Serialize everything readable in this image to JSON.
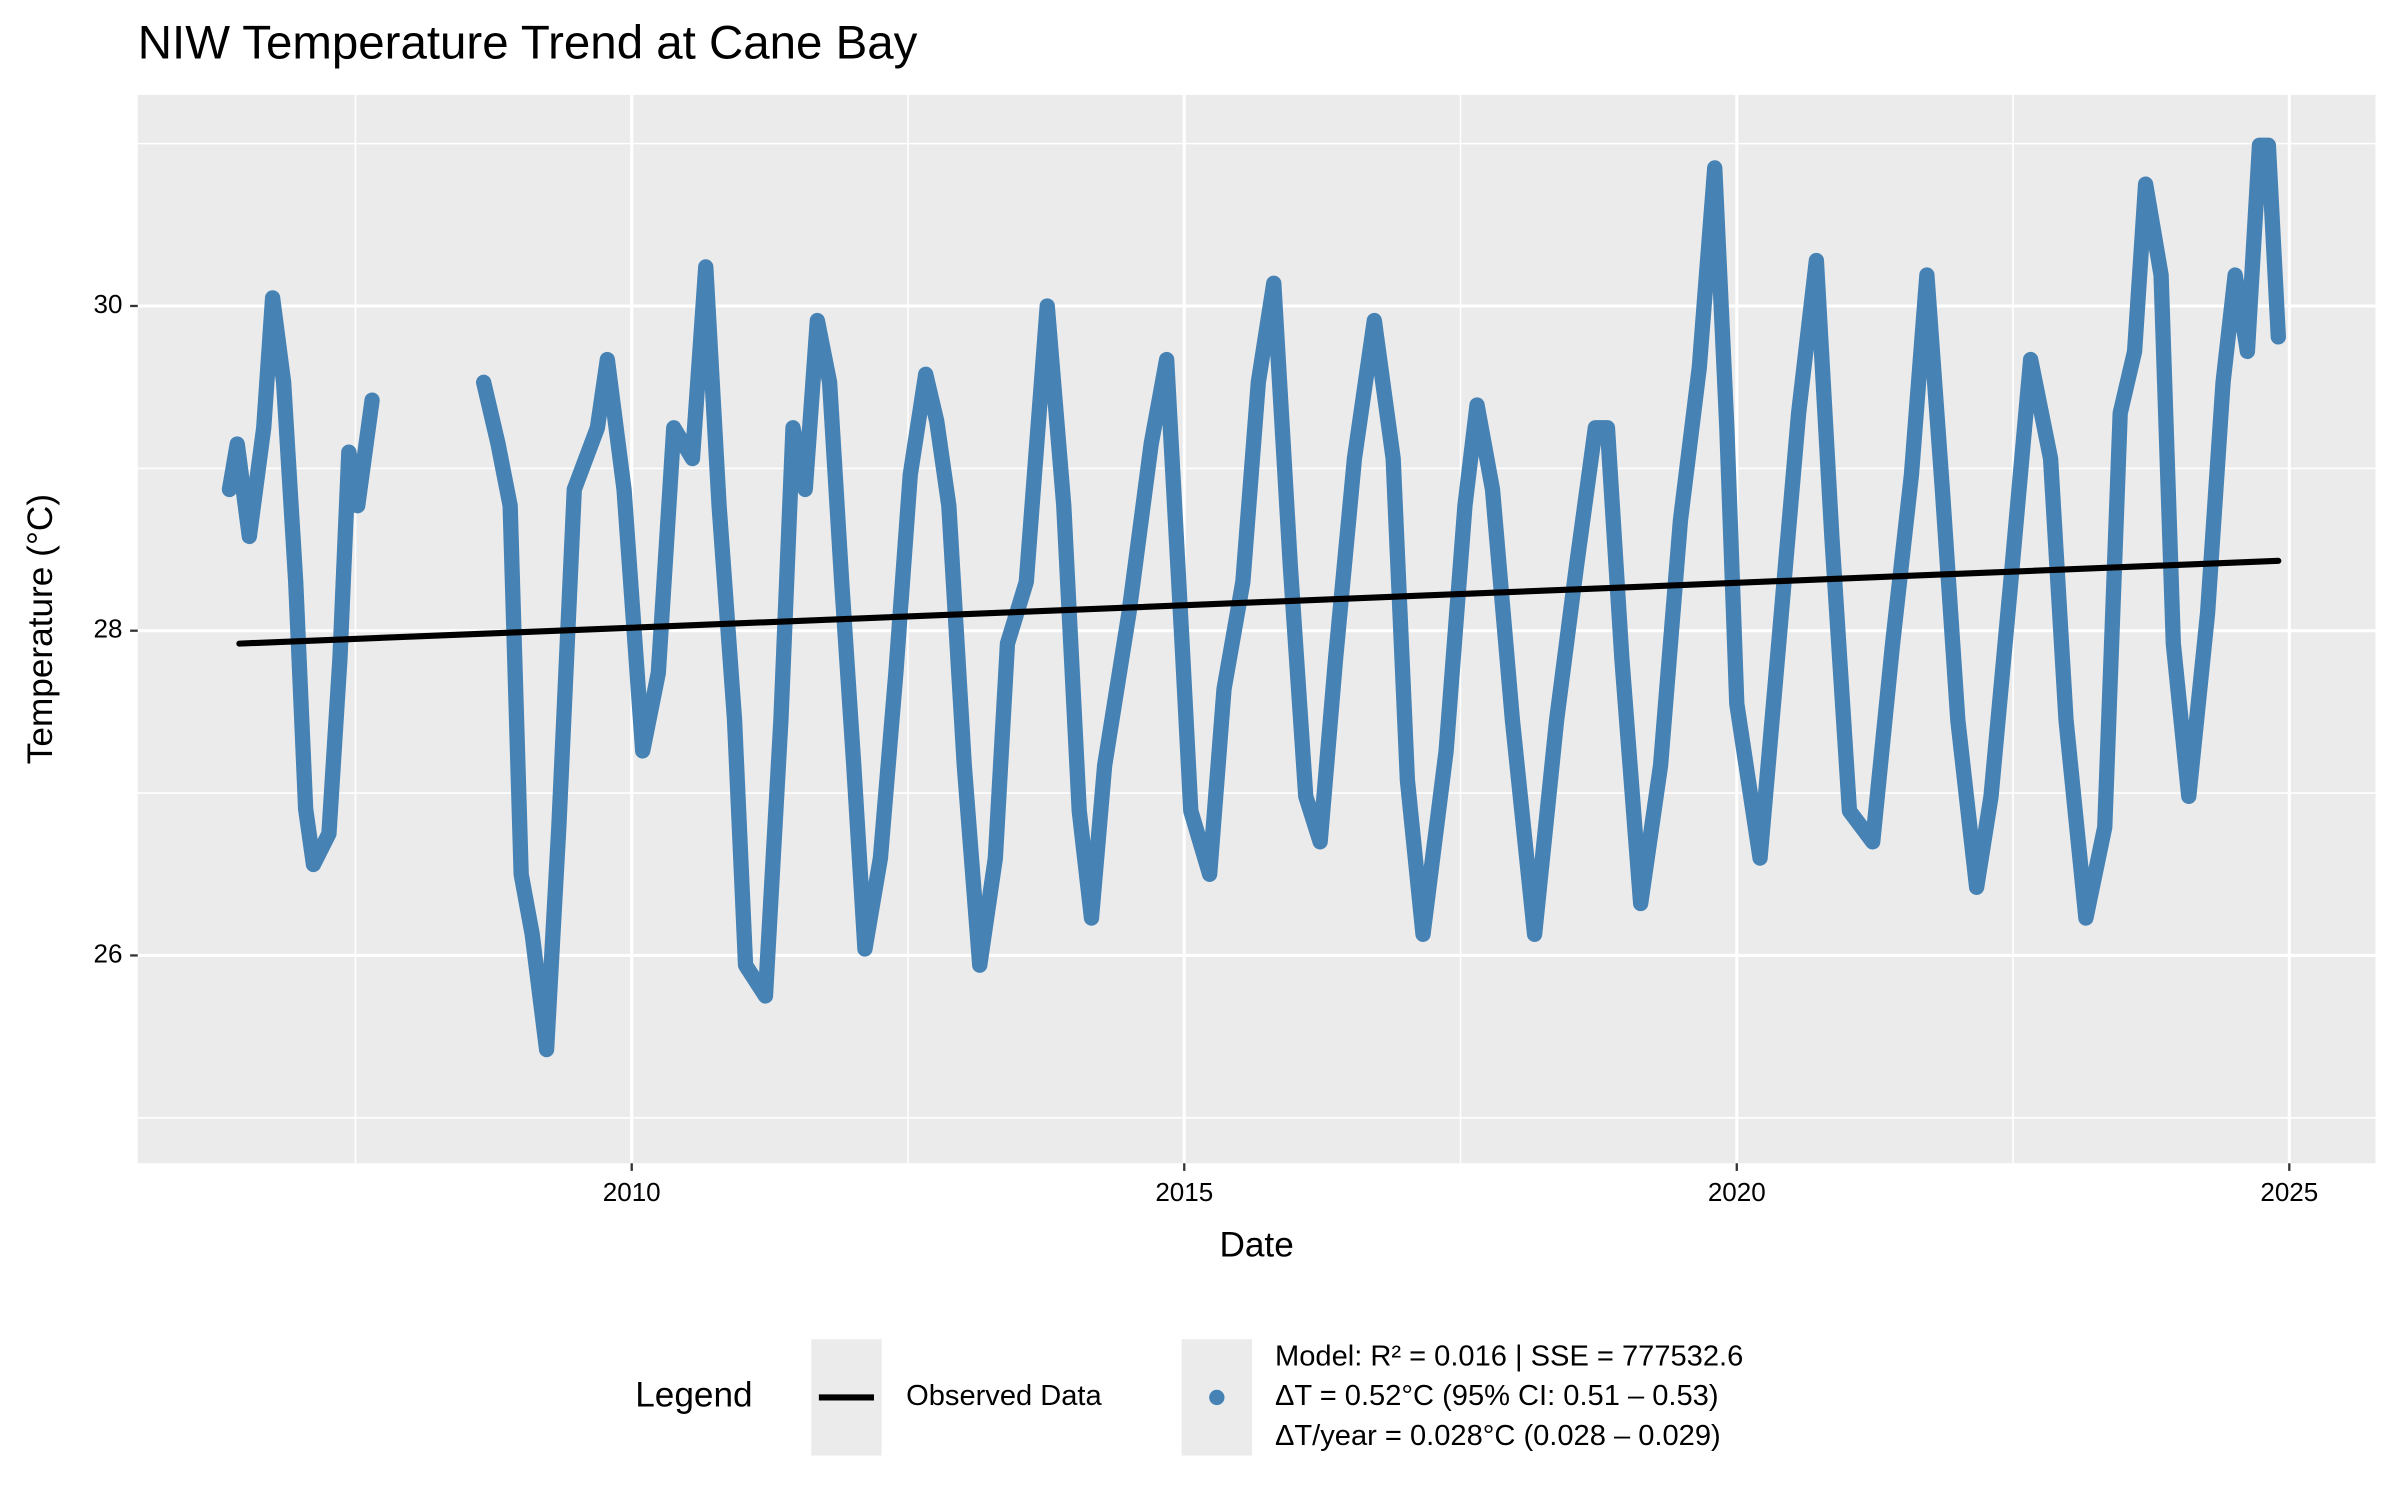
{
  "chart_data": {
    "type": "line",
    "title": "NIW Temperature Trend at Cane Bay",
    "x_label": "Date",
    "y_label": "Temperature (°C)",
    "xlim": [
      2005.53,
      2025.78
    ],
    "ylim": [
      24.72,
      31.3
    ],
    "xticks": [
      2010,
      2015,
      2020,
      2025
    ],
    "yticks": [
      26,
      28,
      30
    ],
    "xminor": [
      2007.5,
      2012.5,
      2017.5,
      2022.5
    ],
    "yminor": [
      25,
      27,
      29,
      31
    ],
    "grid": true,
    "legend_position": "bottom",
    "legend_title": "Legend",
    "series": [
      {
        "label_lines": [
          "Model: R² = 0.016 | SSE = 777532.6",
          "ΔT = 0.52°C (95% CI: 0.51 – 0.53)",
          "ΔT/year = 0.028°C (0.028 – 0.029)"
        ],
        "color": "#4682b4",
        "x": [
          2006.36,
          2006.43,
          2006.54,
          2006.67,
          2006.75,
          2006.85,
          2006.96,
          2007.05,
          2007.12,
          2007.26,
          2007.36,
          2007.44,
          2007.52,
          2007.65,
          2008.15,
          2008.66,
          2008.79,
          2008.9,
          2009.0,
          2009.1,
          2009.23,
          2009.34,
          2009.48,
          2009.69,
          2009.78,
          2009.93,
          2010.1,
          2010.24,
          2010.38,
          2010.55,
          2010.67,
          2010.79,
          2010.93,
          2011.03,
          2011.21,
          2011.35,
          2011.46,
          2011.57,
          2011.68,
          2011.79,
          2011.9,
          2012.01,
          2012.11,
          2012.25,
          2012.39,
          2012.52,
          2012.66,
          2012.76,
          2012.87,
          2013.01,
          2013.15,
          2013.29,
          2013.4,
          2013.57,
          2013.76,
          2013.91,
          2014.05,
          2014.16,
          2014.28,
          2014.5,
          2014.7,
          2014.84,
          2014.98,
          2015.06,
          2015.23,
          2015.36,
          2015.53,
          2015.67,
          2015.81,
          2015.96,
          2016.1,
          2016.23,
          2016.37,
          2016.54,
          2016.72,
          2016.89,
          2017.02,
          2017.16,
          2017.37,
          2017.54,
          2017.65,
          2017.79,
          2017.97,
          2018.17,
          2018.37,
          2018.55,
          2018.72,
          2018.83,
          2018.96,
          2019.13,
          2019.31,
          2019.49,
          2019.66,
          2019.8,
          2019.91,
          2020.0,
          2020.21,
          2020.38,
          2020.56,
          2020.72,
          2020.86,
          2021.02,
          2021.23,
          2021.41,
          2021.58,
          2021.72,
          2021.86,
          2022.0,
          2022.17,
          2022.3,
          2022.48,
          2022.66,
          2022.84,
          2022.98,
          2023.16,
          2023.33,
          2023.47,
          2023.6,
          2023.7,
          2023.84,
          2023.95,
          2024.09,
          2024.26,
          2024.4,
          2024.51,
          2024.62,
          2024.73,
          2024.81,
          2024.9
        ],
        "values": [
          28.87,
          29.15,
          28.58,
          29.25,
          30.05,
          29.53,
          28.3,
          26.9,
          26.56,
          26.75,
          27.83,
          29.1,
          28.77,
          29.42,
          null,
          29.53,
          29.15,
          28.77,
          26.5,
          26.13,
          25.42,
          26.79,
          28.87,
          29.25,
          29.67,
          28.87,
          27.26,
          27.74,
          29.25,
          29.06,
          30.24,
          28.77,
          27.45,
          25.94,
          25.75,
          27.45,
          29.25,
          28.87,
          29.91,
          29.53,
          28.3,
          27.17,
          26.04,
          26.6,
          27.74,
          28.96,
          29.58,
          29.29,
          28.77,
          27.17,
          25.94,
          26.6,
          27.92,
          28.3,
          30.0,
          28.77,
          26.89,
          26.23,
          27.17,
          28.11,
          29.15,
          29.67,
          27.92,
          26.89,
          26.5,
          27.64,
          28.3,
          29.53,
          30.14,
          28.4,
          26.98,
          26.7,
          27.83,
          29.06,
          29.91,
          29.06,
          27.08,
          26.13,
          27.26,
          28.77,
          29.39,
          28.87,
          27.45,
          26.13,
          27.45,
          28.4,
          29.25,
          29.25,
          27.83,
          26.32,
          27.17,
          28.68,
          29.62,
          30.85,
          29.25,
          27.55,
          26.6,
          27.92,
          29.34,
          30.28,
          28.58,
          26.89,
          26.7,
          27.92,
          28.96,
          30.19,
          28.87,
          27.45,
          26.42,
          26.98,
          28.3,
          29.67,
          29.06,
          27.45,
          26.23,
          26.79,
          29.34,
          29.72,
          30.75,
          30.19,
          27.92,
          26.98,
          28.11,
          29.53,
          30.19,
          29.72,
          30.99,
          30.99,
          29.81
        ]
      },
      {
        "name": "Observed Data",
        "color": "#000000",
        "x": [
          2006.45,
          2024.9
        ],
        "values": [
          27.92,
          28.43
        ]
      }
    ]
  }
}
